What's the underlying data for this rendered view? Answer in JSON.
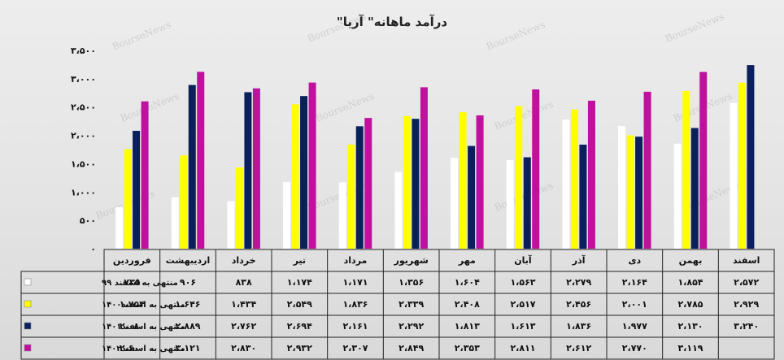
{
  "chart_data": {
    "type": "bar",
    "title": "درآمد ماهانه\" آریا\"",
    "categories": [
      "فروردین",
      "اردیبهشت",
      "خرداد",
      "تیر",
      "مرداد",
      "شهریور",
      "مهر",
      "آبان",
      "آذر",
      "دی",
      "بهمن",
      "اسفند"
    ],
    "yticks": [
      0,
      500,
      1000,
      1500,
      2000,
      2500,
      3000,
      3500
    ],
    "ytick_labels": [
      "۰",
      "۵۰۰",
      "۱،۰۰۰",
      "۱،۵۰۰",
      "۲،۰۰۰",
      "۲،۵۰۰",
      "۳،۰۰۰",
      "۳،۵۰۰"
    ],
    "ylim": [
      0,
      3500
    ],
    "grid": false,
    "legend": "table-left",
    "series": [
      {
        "name": "منتهی به اسفند ۹۹",
        "color": "#ffffff",
        "values": [
          735,
          906,
          838,
          1174,
          1171,
          1356,
          1604,
          1563,
          2279,
          2164,
          1854,
          2572
        ],
        "labels": [
          "۷۳۵",
          "۹۰۶",
          "۸۳۸",
          "۱،۱۷۴",
          "۱،۱۷۱",
          "۱،۳۵۶",
          "۱،۶۰۴",
          "۱،۵۶۳",
          "۲،۲۷۹",
          "۲،۱۶۴",
          "۱،۸۵۴",
          "۲،۵۷۲"
        ]
      },
      {
        "name": "منتهی به اسفند۱۴۰۰",
        "color": "#ffff00",
        "values": [
          1754,
          1646,
          1434,
          2549,
          1836,
          2339,
          2408,
          2517,
          2456,
          2001,
          2785,
          2929
        ],
        "labels": [
          "۱،۷۵۴",
          "۱،۶۴۶",
          "۱،۴۳۴",
          "۲،۵۴۹",
          "۱،۸۳۶",
          "۲،۳۳۹",
          "۲،۴۰۸",
          "۲،۵۱۷",
          "۲،۴۵۶",
          "۲،۰۰۱",
          "۲،۷۸۵",
          "۲،۹۲۹"
        ]
      },
      {
        "name": "منتهی به اسفند۱۴۰۱",
        "color": "#0a1f5c",
        "values": [
          2080,
          2889,
          2762,
          2694,
          2161,
          2292,
          1813,
          1613,
          1836,
          1977,
          2130,
          3240
        ],
        "labels": [
          "۲،۰۸۰",
          "۲،۸۸۹",
          "۲،۷۶۲",
          "۲،۶۹۴",
          "۲،۱۶۱",
          "۲،۲۹۲",
          "۱،۸۱۳",
          "۱،۶۱۳",
          "۱،۸۳۶",
          "۱،۹۷۷",
          "۲،۱۳۰",
          "۳،۲۴۰"
        ]
      },
      {
        "name": "منتهی به اسفند۱۴۰۲",
        "color": "#c0109e",
        "values": [
          2600,
          3121,
          2830,
          2932,
          2307,
          2849,
          2353,
          2811,
          2612,
          2770,
          3119,
          null
        ],
        "labels": [
          "۲،۶۰۰",
          "۳،۱۲۱",
          "۲،۸۳۰",
          "۲،۹۳۲",
          "۲،۳۰۷",
          "۲،۸۴۹",
          "۲،۳۵۳",
          "۲،۸۱۱",
          "۲،۶۱۲",
          "۲،۷۷۰",
          "۳،۱۱۹",
          ""
        ]
      }
    ],
    "watermark": "BourseNews"
  }
}
